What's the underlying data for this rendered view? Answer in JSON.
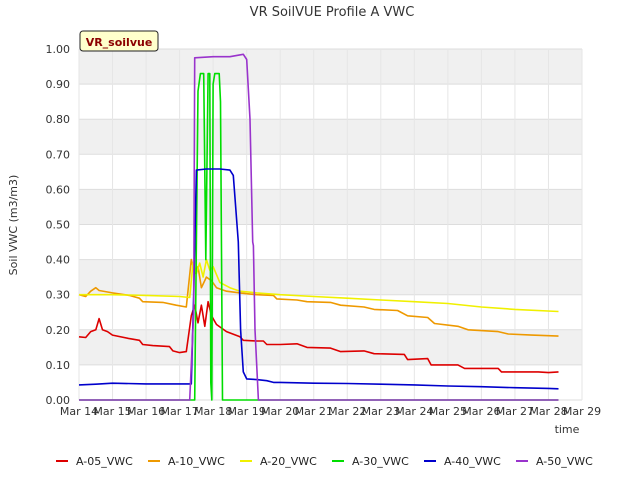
{
  "chart_data": {
    "type": "line",
    "title": "VR SoilVUE Profile A VWC",
    "xlabel": "time",
    "ylabel": "Soil VWC (m3/m3)",
    "site_label": "VR_soilvue",
    "x_is_day_of_march": true,
    "xlim": [
      14,
      29
    ],
    "ylim": [
      0,
      1
    ],
    "x_ticks": [
      {
        "x": 14,
        "label": "Mar 14"
      },
      {
        "x": 15,
        "label": "Mar 15"
      },
      {
        "x": 16,
        "label": "Mar 16"
      },
      {
        "x": 17,
        "label": "Mar 17"
      },
      {
        "x": 18,
        "label": "Mar 18"
      },
      {
        "x": 19,
        "label": "Mar 19"
      },
      {
        "x": 20,
        "label": "Mar 20"
      },
      {
        "x": 21,
        "label": "Mar 21"
      },
      {
        "x": 22,
        "label": "Mar 22"
      },
      {
        "x": 23,
        "label": "Mar 23"
      },
      {
        "x": 24,
        "label": "Mar 24"
      },
      {
        "x": 25,
        "label": "Mar 25"
      },
      {
        "x": 26,
        "label": "Mar 26"
      },
      {
        "x": 27,
        "label": "Mar 27"
      },
      {
        "x": 28,
        "label": "Mar 28"
      },
      {
        "x": 29,
        "label": "Mar 29"
      }
    ],
    "y_ticks": [
      {
        "y": 0.0,
        "label": "0.00"
      },
      {
        "y": 0.1,
        "label": "0.10"
      },
      {
        "y": 0.2,
        "label": "0.20"
      },
      {
        "y": 0.3,
        "label": "0.30"
      },
      {
        "y": 0.4,
        "label": "0.40"
      },
      {
        "y": 0.5,
        "label": "0.50"
      },
      {
        "y": 0.6,
        "label": "0.60"
      },
      {
        "y": 0.7,
        "label": "0.70"
      },
      {
        "y": 0.8,
        "label": "0.80"
      },
      {
        "y": 0.9,
        "label": "0.90"
      },
      {
        "y": 1.0,
        "label": "1.00"
      }
    ],
    "grid": true,
    "banded_background": true,
    "legend_position": "bottom",
    "series": [
      {
        "name": "A-05_VWC",
        "color": "#dd0000",
        "points": [
          [
            14.0,
            0.18
          ],
          [
            14.2,
            0.178
          ],
          [
            14.35,
            0.195
          ],
          [
            14.5,
            0.2
          ],
          [
            14.6,
            0.232
          ],
          [
            14.7,
            0.2
          ],
          [
            14.85,
            0.195
          ],
          [
            15.0,
            0.185
          ],
          [
            15.5,
            0.175
          ],
          [
            15.8,
            0.17
          ],
          [
            15.9,
            0.158
          ],
          [
            16.2,
            0.155
          ],
          [
            16.7,
            0.152
          ],
          [
            16.8,
            0.14
          ],
          [
            17.0,
            0.135
          ],
          [
            17.2,
            0.138
          ],
          [
            17.35,
            0.24
          ],
          [
            17.45,
            0.27
          ],
          [
            17.55,
            0.22
          ],
          [
            17.65,
            0.27
          ],
          [
            17.75,
            0.21
          ],
          [
            17.85,
            0.28
          ],
          [
            17.95,
            0.24
          ],
          [
            18.1,
            0.215
          ],
          [
            18.4,
            0.195
          ],
          [
            18.8,
            0.18
          ],
          [
            18.9,
            0.17
          ],
          [
            19.3,
            0.168
          ],
          [
            19.5,
            0.168
          ],
          [
            19.6,
            0.158
          ],
          [
            20.0,
            0.158
          ],
          [
            20.5,
            0.16
          ],
          [
            20.8,
            0.15
          ],
          [
            21.5,
            0.148
          ],
          [
            21.8,
            0.138
          ],
          [
            22.5,
            0.14
          ],
          [
            22.8,
            0.132
          ],
          [
            23.7,
            0.13
          ],
          [
            23.8,
            0.115
          ],
          [
            24.4,
            0.118
          ],
          [
            24.5,
            0.1
          ],
          [
            25.3,
            0.1
          ],
          [
            25.5,
            0.09
          ],
          [
            26.5,
            0.09
          ],
          [
            26.6,
            0.08
          ],
          [
            27.7,
            0.08
          ],
          [
            28.0,
            0.078
          ],
          [
            28.3,
            0.08
          ]
        ]
      },
      {
        "name": "A-10_VWC",
        "color": "#ee9900",
        "points": [
          [
            14.0,
            0.3
          ],
          [
            14.2,
            0.295
          ],
          [
            14.35,
            0.31
          ],
          [
            14.5,
            0.32
          ],
          [
            14.6,
            0.312
          ],
          [
            15.0,
            0.305
          ],
          [
            15.5,
            0.298
          ],
          [
            15.8,
            0.29
          ],
          [
            15.9,
            0.28
          ],
          [
            16.5,
            0.278
          ],
          [
            16.9,
            0.27
          ],
          [
            17.2,
            0.265
          ],
          [
            17.35,
            0.4
          ],
          [
            17.45,
            0.36
          ],
          [
            17.55,
            0.38
          ],
          [
            17.65,
            0.32
          ],
          [
            17.8,
            0.35
          ],
          [
            17.95,
            0.34
          ],
          [
            18.1,
            0.32
          ],
          [
            18.4,
            0.31
          ],
          [
            18.8,
            0.305
          ],
          [
            19.3,
            0.3
          ],
          [
            19.8,
            0.298
          ],
          [
            19.9,
            0.288
          ],
          [
            20.5,
            0.285
          ],
          [
            20.8,
            0.28
          ],
          [
            21.5,
            0.278
          ],
          [
            21.8,
            0.27
          ],
          [
            22.5,
            0.265
          ],
          [
            22.8,
            0.258
          ],
          [
            23.5,
            0.255
          ],
          [
            23.8,
            0.24
          ],
          [
            24.4,
            0.235
          ],
          [
            24.6,
            0.218
          ],
          [
            25.3,
            0.21
          ],
          [
            25.6,
            0.2
          ],
          [
            26.5,
            0.195
          ],
          [
            26.8,
            0.188
          ],
          [
            27.5,
            0.185
          ],
          [
            28.3,
            0.182
          ]
        ]
      },
      {
        "name": "A-20_VWC",
        "color": "#f0f000",
        "points": [
          [
            14.0,
            0.3
          ],
          [
            14.5,
            0.3
          ],
          [
            15.0,
            0.3
          ],
          [
            16.0,
            0.298
          ],
          [
            17.0,
            0.295
          ],
          [
            17.3,
            0.292
          ],
          [
            17.4,
            0.39
          ],
          [
            17.5,
            0.36
          ],
          [
            17.6,
            0.39
          ],
          [
            17.7,
            0.35
          ],
          [
            17.8,
            0.4
          ],
          [
            17.9,
            0.37
          ],
          [
            18.0,
            0.38
          ],
          [
            18.2,
            0.335
          ],
          [
            18.5,
            0.32
          ],
          [
            18.8,
            0.31
          ],
          [
            19.3,
            0.305
          ],
          [
            20.0,
            0.3
          ],
          [
            21.0,
            0.295
          ],
          [
            22.0,
            0.29
          ],
          [
            23.0,
            0.285
          ],
          [
            24.0,
            0.28
          ],
          [
            25.0,
            0.275
          ],
          [
            26.0,
            0.265
          ],
          [
            27.0,
            0.258
          ],
          [
            28.3,
            0.252
          ]
        ]
      },
      {
        "name": "A-30_VWC",
        "color": "#00dd00",
        "points": [
          [
            14.0,
            0.0
          ],
          [
            17.3,
            0.0
          ],
          [
            17.45,
            0.0
          ],
          [
            17.55,
            0.88
          ],
          [
            17.62,
            0.93
          ],
          [
            17.72,
            0.93
          ],
          [
            17.78,
            0.4
          ],
          [
            17.85,
            0.93
          ],
          [
            17.9,
            0.93
          ],
          [
            17.93,
            0.05
          ],
          [
            17.96,
            0.0
          ],
          [
            18.0,
            0.9
          ],
          [
            18.05,
            0.93
          ],
          [
            18.18,
            0.93
          ],
          [
            18.22,
            0.85
          ],
          [
            18.28,
            0.0
          ],
          [
            28.3,
            0.0
          ]
        ]
      },
      {
        "name": "A-40_VWC",
        "color": "#0000cc",
        "points": [
          [
            14.0,
            0.043
          ],
          [
            14.5,
            0.045
          ],
          [
            15.0,
            0.048
          ],
          [
            16.0,
            0.046
          ],
          [
            17.0,
            0.046
          ],
          [
            17.35,
            0.046
          ],
          [
            17.42,
            0.3
          ],
          [
            17.5,
            0.655
          ],
          [
            17.8,
            0.658
          ],
          [
            18.2,
            0.658
          ],
          [
            18.5,
            0.655
          ],
          [
            18.6,
            0.64
          ],
          [
            18.75,
            0.45
          ],
          [
            18.82,
            0.2
          ],
          [
            18.9,
            0.08
          ],
          [
            19.0,
            0.06
          ],
          [
            19.3,
            0.058
          ],
          [
            19.6,
            0.055
          ],
          [
            19.8,
            0.05
          ],
          [
            20.0,
            0.05
          ],
          [
            21.0,
            0.048
          ],
          [
            22.0,
            0.047
          ],
          [
            23.0,
            0.045
          ],
          [
            24.0,
            0.043
          ],
          [
            25.0,
            0.04
          ],
          [
            26.0,
            0.038
          ],
          [
            27.0,
            0.035
          ],
          [
            28.0,
            0.033
          ],
          [
            28.3,
            0.032
          ]
        ]
      },
      {
        "name": "A-50_VWC",
        "color": "#9933cc",
        "points": [
          [
            14.0,
            0.0
          ],
          [
            17.3,
            0.0
          ],
          [
            17.42,
            0.25
          ],
          [
            17.45,
            0.975
          ],
          [
            18.0,
            0.978
          ],
          [
            18.5,
            0.978
          ],
          [
            18.9,
            0.985
          ],
          [
            19.0,
            0.97
          ],
          [
            19.1,
            0.8
          ],
          [
            19.18,
            0.45
          ],
          [
            19.2,
            0.44
          ],
          [
            19.25,
            0.2
          ],
          [
            19.35,
            0.0
          ],
          [
            28.3,
            0.0
          ]
        ]
      }
    ]
  }
}
